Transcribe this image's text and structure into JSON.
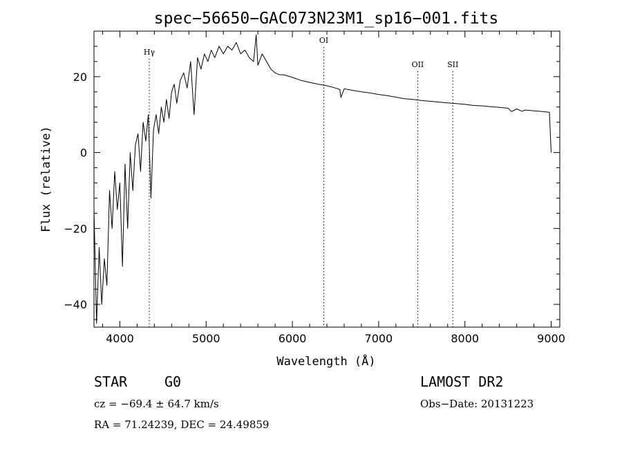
{
  "chart_data": {
    "type": "line",
    "title": "spec−56650−GAC073N23M1_sp16−001.fits",
    "xlabel": "Wavelength (Å)",
    "ylabel": "Flux (relative)",
    "xlim": [
      3700,
      9100
    ],
    "ylim": [
      -46,
      32
    ],
    "x_ticks": [
      4000,
      5000,
      6000,
      7000,
      8000,
      9000
    ],
    "x_tick_labels": [
      "4000",
      "5000",
      "6000",
      "7000",
      "8000",
      "9000"
    ],
    "y_ticks": [
      -40,
      -20,
      0,
      20
    ],
    "y_tick_labels": [
      "−40",
      "−20",
      "0",
      "20"
    ],
    "grid": false,
    "spectral_lines": [
      {
        "label": "Hγ",
        "wavelength": 4341
      },
      {
        "label": "OI",
        "wavelength": 6364
      },
      {
        "label": "OII",
        "wavelength": 7453
      },
      {
        "label": "SII",
        "wavelength": 7860
      }
    ],
    "series": [
      {
        "x": [
          3700,
          3730,
          3760,
          3790,
          3820,
          3850,
          3880,
          3910,
          3940,
          3970,
          4000,
          4030,
          4060,
          4090,
          4120,
          4150,
          4180,
          4210,
          4240,
          4270,
          4300,
          4330,
          4360,
          4390,
          4420,
          4450,
          4480,
          4510,
          4540,
          4570,
          4600,
          4630,
          4660,
          4700,
          4740,
          4780,
          4820,
          4860,
          4900,
          4940,
          4980,
          5020,
          5060,
          5100,
          5150,
          5200,
          5250,
          5300,
          5350,
          5400,
          5450,
          5500,
          5550,
          5580,
          5600,
          5650,
          5700,
          5750,
          5800,
          5850,
          5900,
          6000,
          6100,
          6200,
          6300,
          6400,
          6500,
          6550,
          6563,
          6600,
          6700,
          6800,
          6900,
          7000,
          7100,
          7200,
          7300,
          7400,
          7500,
          7600,
          7700,
          7800,
          7900,
          8000,
          8100,
          8200,
          8300,
          8400,
          8500,
          8540,
          8600,
          8662,
          8700,
          8800,
          8900,
          8980,
          9000
        ],
        "y": [
          -15,
          -45,
          -25,
          -40,
          -28,
          -35,
          -10,
          -20,
          -5,
          -15,
          -8,
          -30,
          -3,
          -20,
          0,
          -10,
          2,
          5,
          -5,
          8,
          3,
          10,
          -12,
          6,
          10,
          5,
          12,
          8,
          14,
          9,
          16,
          18,
          13,
          19,
          21,
          17,
          24,
          10,
          25,
          22,
          26,
          24,
          27,
          25,
          28,
          26,
          28,
          27,
          29,
          26,
          27,
          25,
          24,
          31,
          23,
          26,
          24,
          22,
          21,
          20.5,
          20.5,
          19.8,
          19,
          18.5,
          18,
          17.6,
          17,
          16.6,
          14.5,
          16.8,
          16.4,
          16,
          15.7,
          15.3,
          15,
          14.6,
          14.2,
          14,
          13.7,
          13.5,
          13.3,
          13.1,
          12.9,
          12.7,
          12.4,
          12.3,
          12.1,
          11.9,
          11.7,
          10.8,
          11.5,
          10.9,
          11.2,
          11,
          10.8,
          10.6,
          0
        ]
      }
    ]
  },
  "info": {
    "object_class": "STAR",
    "subclass": "G0",
    "survey": "LAMOST DR2",
    "redshift": "cz = −69.4 ± 64.7 km/s",
    "obs_date": "Obs−Date: 20131223",
    "coords": "RA =  71.24239, DEC =  24.49859"
  }
}
